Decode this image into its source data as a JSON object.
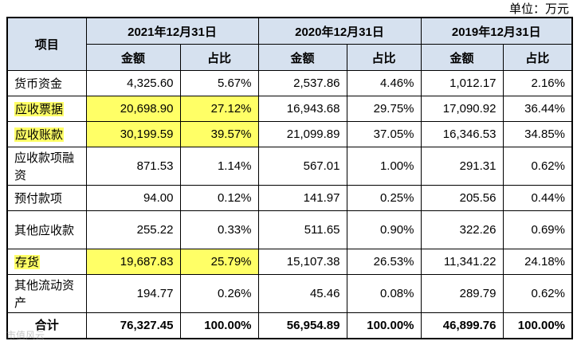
{
  "unit_label": "单位：万元",
  "header": {
    "item": "项目",
    "years": [
      "2021年12月31日",
      "2020年12月31日",
      "2019年12月31日"
    ],
    "amount": "金额",
    "ratio": "占比"
  },
  "rows": [
    {
      "label": "货币资金",
      "v": [
        "4,325.60",
        "5.67%",
        "2,537.86",
        "4.46%",
        "1,012.17",
        "2.16%"
      ],
      "highlight": false
    },
    {
      "label": "应收票据",
      "v": [
        "20,698.90",
        "27.12%",
        "16,943.68",
        "29.75%",
        "17,090.92",
        "36.44%"
      ],
      "highlight": true
    },
    {
      "label": "应收账款",
      "v": [
        "30,199.59",
        "39.57%",
        "21,099.89",
        "37.05%",
        "16,346.53",
        "34.85%"
      ],
      "highlight": true
    },
    {
      "label": "应收款项融资",
      "v": [
        "871.53",
        "1.14%",
        "567.01",
        "1.00%",
        "291.31",
        "0.62%"
      ],
      "highlight": false
    },
    {
      "label": "预付款项",
      "v": [
        "94.00",
        "0.12%",
        "141.97",
        "0.25%",
        "205.56",
        "0.44%"
      ],
      "highlight": false
    },
    {
      "label": "其他应收款",
      "v": [
        "255.22",
        "0.33%",
        "511.65",
        "0.90%",
        "322.26",
        "0.69%"
      ],
      "highlight": false
    },
    {
      "label": "存货",
      "v": [
        "19,687.83",
        "25.79%",
        "15,107.38",
        "26.53%",
        "11,341.22",
        "24.18%"
      ],
      "highlight": true
    },
    {
      "label": "其他流动资产",
      "v": [
        "194.77",
        "0.26%",
        "45.46",
        "0.08%",
        "289.79",
        "0.62%"
      ],
      "highlight": false
    }
  ],
  "total": {
    "label": "合计",
    "v": [
      "76,327.45",
      "100.00%",
      "56,954.89",
      "100.00%",
      "46,899.76",
      "100.00%"
    ]
  },
  "watermark": "市值风云"
}
